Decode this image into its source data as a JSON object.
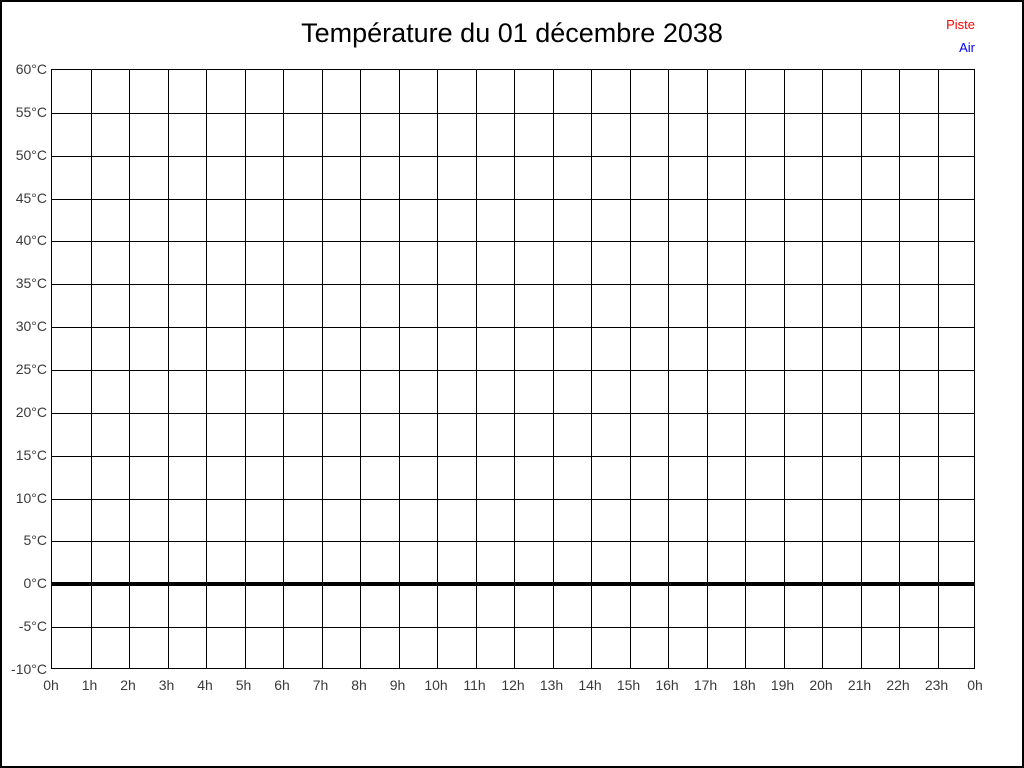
{
  "title": "Température du 01 décembre 2038",
  "legend": {
    "entries": [
      {
        "label": "Piste",
        "color": "#ff0000"
      },
      {
        "label": "Air",
        "color": "#0000ff"
      }
    ]
  },
  "chart_data": {
    "type": "line",
    "title": "Température du 01 décembre 2038",
    "xlabel": "",
    "ylabel": "",
    "grid": true,
    "legend_position": "top-right",
    "x_tick_labels": [
      "0h",
      "1h",
      "2h",
      "3h",
      "4h",
      "5h",
      "6h",
      "7h",
      "8h",
      "9h",
      "10h",
      "11h",
      "12h",
      "13h",
      "14h",
      "15h",
      "16h",
      "17h",
      "18h",
      "19h",
      "20h",
      "21h",
      "22h",
      "23h",
      "0h"
    ],
    "y_ticks": [
      60,
      55,
      50,
      45,
      40,
      35,
      30,
      25,
      20,
      15,
      10,
      5,
      0,
      -5,
      -10
    ],
    "y_tick_labels": [
      "60°C",
      "55°C",
      "50°C",
      "45°C",
      "40°C",
      "35°C",
      "30°C",
      "25°C",
      "20°C",
      "15°C",
      "10°C",
      "5°C",
      "0°C",
      "-5°C",
      "-10°C"
    ],
    "ylim": [
      -10,
      60
    ],
    "zero_line": {
      "value": 0,
      "thick": true,
      "color": "#000000"
    },
    "series": [
      {
        "name": "Piste",
        "color": "#ff0000",
        "values": []
      },
      {
        "name": "Air",
        "color": "#0000ff",
        "values": []
      }
    ]
  },
  "colors": {
    "background": "#ffffff",
    "frame_border": "#000000",
    "grid": "#000000",
    "title_text": "#000000",
    "tick_label_text": "#3a3a3a"
  }
}
